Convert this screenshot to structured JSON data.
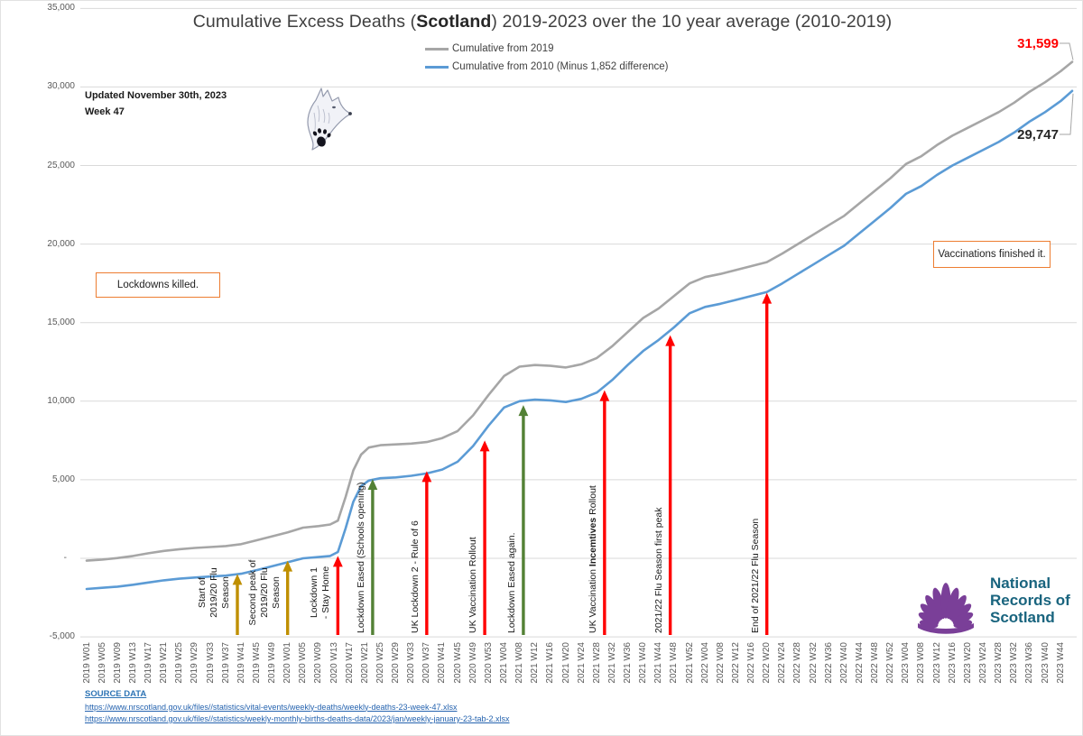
{
  "title": {
    "pre": "Cumulative Excess Deaths (",
    "bold": "Scotland",
    "post": ") 2019-2023 over the 10 year average (2010-2019)"
  },
  "updated_note": {
    "line1": "Updated November 30th, 2023",
    "line2": "Week 47"
  },
  "legend": [
    {
      "label": "Cumulative from 2019",
      "color": "#a6a6a6"
    },
    {
      "label": "Cumulative from 2010 (Minus 1,852 difference)",
      "color": "#5b9bd5"
    }
  ],
  "callouts": [
    {
      "text": "Lockdowns killed.",
      "border": "#ed7d31"
    },
    {
      "text": "Vaccinations finished it.",
      "border": "#ed7d31"
    }
  ],
  "end_labels": [
    {
      "value": "31,599",
      "color": "#ff0000",
      "series": "Cumulative from 2019"
    },
    {
      "value": "29,747",
      "color": "#262626",
      "series": "Cumulative from 2010 (Minus 1,852 difference)"
    }
  ],
  "source": {
    "heading": "SOURCE DATA",
    "links": [
      "https://www.nrscotland.gov.uk/files//statistics/vital-events/weekly-deaths/weekly-deaths-23-week-47.xlsx",
      "https://www.nrscotland.gov.uk/files//statistics/weekly-monthly-births-deaths-data/2023/jan/weekly-january-23-tab-2.xlsx"
    ]
  },
  "logo": {
    "text_lines": [
      "National",
      "Records of",
      "Scotland"
    ],
    "fan_color": "#7a3f98",
    "text_color": "#19647e"
  },
  "icons": {
    "wolf_icon": "grayscale-wolf-head-sketch-with-paw-print"
  },
  "chart_data": {
    "type": "line",
    "title": "Cumulative Excess Deaths (Scotland) 2019-2023 over the 10 year average (2010-2019)",
    "xlabel": "",
    "ylabel": "",
    "x_unit": "ISO week (2019 W01 = index 0, through 2023 W47 = index 255)",
    "ylim": [
      -5000,
      35000
    ],
    "grid": true,
    "legend_position": "top-center",
    "y_ticks": [
      {
        "label": "35,000",
        "value": 35000
      },
      {
        "label": "30,000",
        "value": 30000
      },
      {
        "label": "25,000",
        "value": 25000
      },
      {
        "label": "20,000",
        "value": 20000
      },
      {
        "label": "15,000",
        "value": 15000
      },
      {
        "label": "10,000",
        "value": 10000
      },
      {
        "label": "5,000",
        "value": 5000
      },
      {
        "label": "-",
        "value": 0
      },
      {
        "label": "-5,000",
        "value": -5000
      }
    ],
    "x_tick_labels": [
      "2019 W01",
      "2019 W05",
      "2019 W09",
      "2019 W13",
      "2019 W17",
      "2019 W21",
      "2019 W25",
      "2019 W29",
      "2019 W33",
      "2019 W37",
      "2019 W41",
      "2019 W45",
      "2019 W49",
      "2020 W01",
      "2020 W05",
      "2020 W09",
      "2020 W13",
      "2020 W17",
      "2020 W21",
      "2020 W25",
      "2020 W29",
      "2020 W33",
      "2020 W37",
      "2020 W41",
      "2020 W45",
      "2020 W49",
      "2020 W53",
      "2021 W04",
      "2021 W08",
      "2021 W12",
      "2021 W16",
      "2021 W20",
      "2021 W24",
      "2021 W28",
      "2021 W32",
      "2021 W36",
      "2021 W40",
      "2021 W44",
      "2021 W48",
      "2021 W52",
      "2022 W04",
      "2022 W08",
      "2022 W12",
      "2022 W16",
      "2022 W20",
      "2022 W24",
      "2022 W28",
      "2022 W32",
      "2022 W36",
      "2022 W40",
      "2022 W44",
      "2022 W48",
      "2022 W52",
      "2023 W04",
      "2023 W08",
      "2023 W12",
      "2023 W16",
      "2023 W20",
      "2023 W24",
      "2023 W28",
      "2023 W32",
      "2023 W36",
      "2023 W40",
      "2023 W44"
    ],
    "series": [
      {
        "name": "Cumulative from 2019",
        "color": "#a6a6a6",
        "end_value": 31599,
        "points": [
          [
            0,
            -150
          ],
          [
            4,
            -80
          ],
          [
            8,
            20
          ],
          [
            12,
            150
          ],
          [
            16,
            320
          ],
          [
            20,
            470
          ],
          [
            24,
            580
          ],
          [
            28,
            660
          ],
          [
            32,
            720
          ],
          [
            36,
            780
          ],
          [
            40,
            900
          ],
          [
            44,
            1150
          ],
          [
            48,
            1400
          ],
          [
            52,
            1650
          ],
          [
            56,
            1950
          ],
          [
            60,
            2050
          ],
          [
            63,
            2150
          ],
          [
            65,
            2400
          ],
          [
            67,
            3900
          ],
          [
            69,
            5600
          ],
          [
            71,
            6600
          ],
          [
            73,
            7050
          ],
          [
            76,
            7200
          ],
          [
            80,
            7250
          ],
          [
            84,
            7300
          ],
          [
            88,
            7400
          ],
          [
            92,
            7650
          ],
          [
            96,
            8100
          ],
          [
            100,
            9100
          ],
          [
            104,
            10400
          ],
          [
            108,
            11600
          ],
          [
            112,
            12200
          ],
          [
            116,
            12300
          ],
          [
            120,
            12250
          ],
          [
            124,
            12150
          ],
          [
            128,
            12350
          ],
          [
            132,
            12750
          ],
          [
            136,
            13500
          ],
          [
            140,
            14400
          ],
          [
            144,
            15300
          ],
          [
            148,
            15900
          ],
          [
            152,
            16700
          ],
          [
            156,
            17500
          ],
          [
            160,
            17900
          ],
          [
            164,
            18100
          ],
          [
            168,
            18350
          ],
          [
            172,
            18600
          ],
          [
            176,
            18850
          ],
          [
            180,
            19400
          ],
          [
            184,
            20000
          ],
          [
            188,
            20600
          ],
          [
            192,
            21200
          ],
          [
            196,
            21800
          ],
          [
            200,
            22600
          ],
          [
            204,
            23400
          ],
          [
            208,
            24200
          ],
          [
            212,
            25100
          ],
          [
            216,
            25600
          ],
          [
            220,
            26300
          ],
          [
            224,
            26900
          ],
          [
            228,
            27400
          ],
          [
            232,
            27900
          ],
          [
            236,
            28400
          ],
          [
            240,
            29000
          ],
          [
            244,
            29700
          ],
          [
            248,
            30300
          ],
          [
            252,
            31000
          ],
          [
            255,
            31599
          ]
        ]
      },
      {
        "name": "Cumulative from 2010 (Minus 1,852 difference)",
        "color": "#5b9bd5",
        "end_value": 29747,
        "points": [
          [
            0,
            -1950
          ],
          [
            4,
            -1880
          ],
          [
            8,
            -1800
          ],
          [
            12,
            -1680
          ],
          [
            16,
            -1540
          ],
          [
            20,
            -1400
          ],
          [
            24,
            -1300
          ],
          [
            28,
            -1220
          ],
          [
            32,
            -1160
          ],
          [
            36,
            -1100
          ],
          [
            40,
            -980
          ],
          [
            44,
            -750
          ],
          [
            48,
            -500
          ],
          [
            52,
            -250
          ],
          [
            56,
            0
          ],
          [
            60,
            80
          ],
          [
            63,
            150
          ],
          [
            65,
            400
          ],
          [
            67,
            1900
          ],
          [
            69,
            3600
          ],
          [
            71,
            4600
          ],
          [
            73,
            4950
          ],
          [
            76,
            5100
          ],
          [
            80,
            5150
          ],
          [
            84,
            5250
          ],
          [
            88,
            5400
          ],
          [
            92,
            5650
          ],
          [
            96,
            6150
          ],
          [
            100,
            7150
          ],
          [
            104,
            8450
          ],
          [
            108,
            9600
          ],
          [
            112,
            10000
          ],
          [
            116,
            10100
          ],
          [
            120,
            10050
          ],
          [
            124,
            9950
          ],
          [
            128,
            10150
          ],
          [
            132,
            10550
          ],
          [
            136,
            11350
          ],
          [
            140,
            12300
          ],
          [
            144,
            13200
          ],
          [
            148,
            13900
          ],
          [
            152,
            14700
          ],
          [
            156,
            15600
          ],
          [
            160,
            16000
          ],
          [
            164,
            16200
          ],
          [
            168,
            16450
          ],
          [
            172,
            16700
          ],
          [
            176,
            16950
          ],
          [
            180,
            17500
          ],
          [
            184,
            18100
          ],
          [
            188,
            18700
          ],
          [
            192,
            19300
          ],
          [
            196,
            19900
          ],
          [
            200,
            20700
          ],
          [
            204,
            21500
          ],
          [
            208,
            22300
          ],
          [
            212,
            23200
          ],
          [
            216,
            23700
          ],
          [
            220,
            24400
          ],
          [
            224,
            25000
          ],
          [
            228,
            25500
          ],
          [
            232,
            26000
          ],
          [
            236,
            26500
          ],
          [
            240,
            27100
          ],
          [
            244,
            27800
          ],
          [
            248,
            28400
          ],
          [
            252,
            29100
          ],
          [
            255,
            29747
          ]
        ]
      }
    ],
    "annotations": [
      {
        "label_lines": [
          "Start of",
          "2019/20 Flu",
          "Season"
        ],
        "color": "#bf8f00",
        "week": 39,
        "tip_value": -1000
      },
      {
        "label_lines": [
          "Second peak of",
          "2019/20 Flu",
          "Season"
        ],
        "color": "#bf8f00",
        "week": 52,
        "tip_value": -150
      },
      {
        "label_lines": [
          "Lockdown 1",
          "- Stay Home"
        ],
        "color": "#ff0000",
        "week": 65,
        "tip_value": 150
      },
      {
        "label_lines": [
          "Lockdown Eased (Schools opening)"
        ],
        "color": "#538135",
        "week": 74,
        "tip_value": 5050
      },
      {
        "label_lines": [
          "UK Lockdown 2 - Rule of 6"
        ],
        "color": "#ff0000",
        "week": 88,
        "tip_value": 5550
      },
      {
        "label_lines": [
          "UK Vaccination Rollout"
        ],
        "color": "#ff0000",
        "week": 103,
        "tip_value": 7500
      },
      {
        "label_lines": [
          "Lockdown Eased again."
        ],
        "color": "#538135",
        "week": 113,
        "tip_value": 9750
      },
      {
        "label_lines": [
          "UK Vaccination **Incemtives** Rollout"
        ],
        "color": "#ff0000",
        "week": 134,
        "tip_value": 10700
      },
      {
        "label_lines": [
          "2021/22 Flu Season first peak"
        ],
        "color": "#ff0000",
        "week": 151,
        "tip_value": 14200
      },
      {
        "label_lines": [
          "End of 2021/22 Flu Season"
        ],
        "color": "#ff0000",
        "week": 176,
        "tip_value": 16900
      }
    ]
  }
}
